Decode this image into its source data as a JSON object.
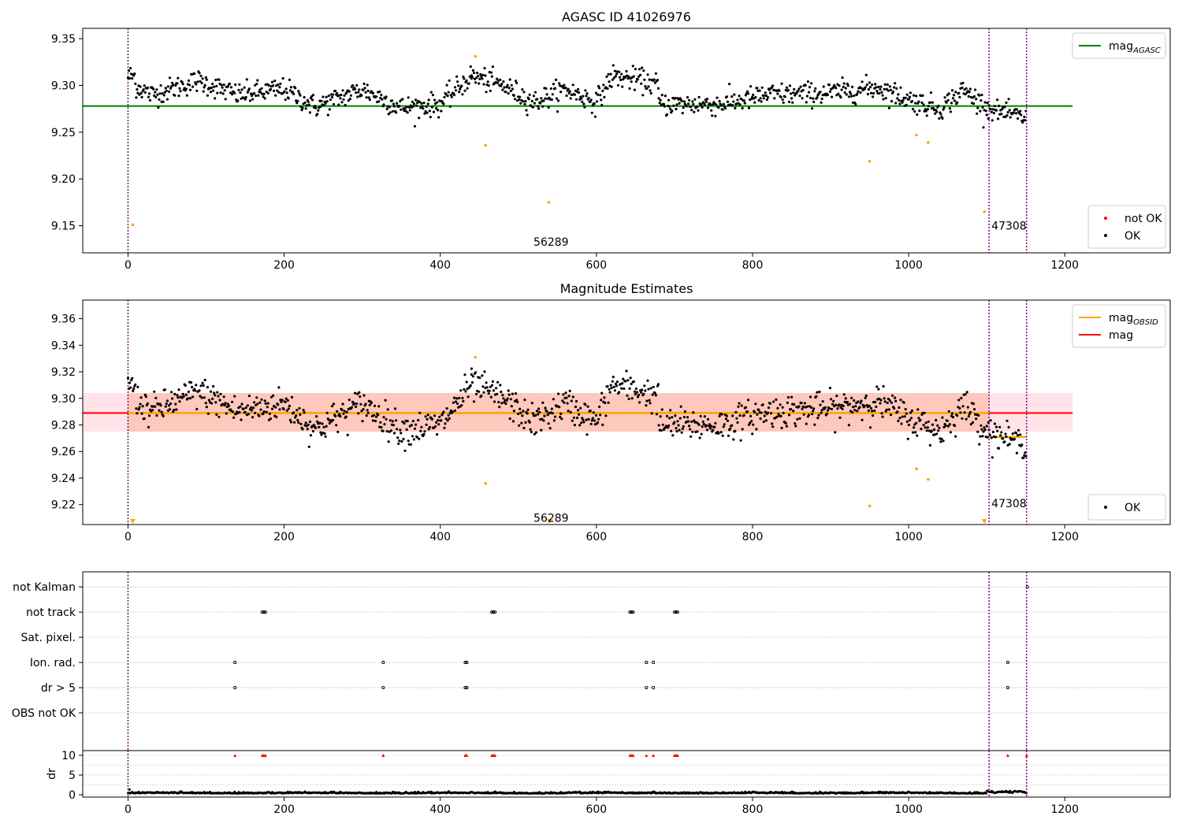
{
  "chart_data": [
    {
      "type": "scatter",
      "title": "AGASC ID 41026976",
      "xlim": [
        -58,
        1335
      ],
      "ylim": [
        9.121,
        9.361
      ],
      "xticks": [
        "0",
        "200",
        "400",
        "600",
        "800",
        "1000",
        "1200"
      ],
      "yticks": [
        "9.15",
        "9.20",
        "9.25",
        "9.30",
        "9.35"
      ],
      "ytick_values": [
        9.15,
        9.2,
        9.25,
        9.3,
        9.35
      ],
      "hlines": [
        {
          "name": "mag",
          "sub": "AGASC",
          "y": 9.278,
          "x": [
            -58,
            1210
          ],
          "color": "#008000"
        }
      ],
      "vlines": [
        0,
        1103,
        1151
      ],
      "obsid_labels": [
        {
          "text": "56289",
          "x": 550,
          "y": 9.133
        },
        {
          "text": "47308",
          "x": 1103,
          "y": 9.15
        }
      ],
      "legends": [
        {
          "position": "upper-right",
          "entries": [
            {
              "type": "line",
              "label": "mag",
              "sub": "AGASC",
              "color": "#008000"
            }
          ]
        },
        {
          "position": "lower-right",
          "entries": [
            {
              "type": "dot",
              "label": "not OK",
              "color": "#ff0000"
            },
            {
              "type": "dot",
              "label": "OK",
              "color": "#000000"
            }
          ]
        }
      ],
      "series": [
        {
          "color": "#000000",
          "segments": [
            {
              "x": [
                0,
                440
              ],
              "base": 9.295,
              "noise": 0.011,
              "wave": [
                [
                  9.31,
                  9.3
                ],
                [
                  30,
                  9.29
                ],
                [
                  90,
                  9.305
                ],
                [
                  140,
                  9.29
                ],
                [
                  200,
                  9.296
                ],
                [
                  240,
                  9.277
                ],
                [
                  300,
                  9.296
                ],
                [
                  350,
                  9.276
                ],
                [
                  400,
                  9.28
                ],
                [
                  440,
                  9.31
                ]
              ]
            },
            {
              "x": [
                440,
                680
              ],
              "base": 9.29,
              "noise": 0.011,
              "wave": [
                [
                  440,
                  9.31
                ],
                [
                  480,
                  9.3
                ],
                [
                  520,
                  9.282
                ],
                [
                  560,
                  9.296
                ],
                [
                  600,
                  9.282
                ],
                [
                  620,
                  9.31
                ],
                [
                  660,
                  9.305
                ],
                [
                  680,
                  9.3
                ]
              ]
            },
            {
              "x": [
                680,
                1103
              ],
              "base": 9.285,
              "noise": 0.011,
              "wave": [
                [
                  680,
                  9.28
                ],
                [
                  760,
                  9.28
                ],
                [
                  820,
                  9.29
                ],
                [
                  900,
                  9.292
                ],
                [
                  960,
                  9.298
                ],
                [
                  1000,
                  9.285
                ],
                [
                  1040,
                  9.275
                ],
                [
                  1070,
                  9.295
                ],
                [
                  1103,
                  9.275
                ]
              ]
            },
            {
              "x": [
                1103,
                1151
              ],
              "base": 9.27,
              "noise": 0.009,
              "wave": [
                [
                  1103,
                  9.275
                ],
                [
                  1151,
                  9.265
                ]
              ]
            }
          ]
        },
        {
          "color": "#ffa500",
          "points": [
            [
              6,
              9.151
            ],
            [
              445,
              9.331
            ],
            [
              458,
              9.236
            ],
            [
              539,
              9.175
            ],
            [
              950,
              9.219
            ],
            [
              1010,
              9.247
            ],
            [
              1025,
              9.239
            ],
            [
              1097,
              9.165
            ]
          ]
        }
      ]
    },
    {
      "type": "scatter",
      "title": "Magnitude Estimates",
      "xlim": [
        -58,
        1335
      ],
      "ylim": [
        9.205,
        9.374
      ],
      "xticks": [
        "0",
        "200",
        "400",
        "600",
        "800",
        "1000",
        "1200"
      ],
      "yticks": [
        "9.22",
        "9.24",
        "9.26",
        "9.28",
        "9.30",
        "9.32",
        "9.34",
        "9.36"
      ],
      "ytick_values": [
        9.22,
        9.24,
        9.26,
        9.28,
        9.3,
        9.32,
        9.34,
        9.36
      ],
      "bands": [
        {
          "x": [
            -58,
            1210
          ],
          "y": [
            9.275,
            9.304
          ],
          "color": "#ffc0cb",
          "opacity": 0.45
        },
        {
          "x": [
            0,
            1103
          ],
          "y": [
            9.275,
            9.304
          ],
          "color": "#ffa07a",
          "opacity": 0.4
        }
      ],
      "hlines": [
        {
          "name": "mag",
          "y": 9.289,
          "x": [
            -58,
            1210
          ],
          "color": "#ff0000"
        },
        {
          "name": "mag",
          "sub": "OBSID",
          "y": 9.289,
          "x": [
            0,
            1103
          ],
          "color": "#ffa500"
        },
        {
          "name": "mag",
          "sub": "OBSID",
          "y": 9.271,
          "x": [
            1103,
            1151
          ],
          "color": "#ffa500"
        }
      ],
      "vlines": [
        0,
        1103,
        1151
      ],
      "obsid_labels": [
        {
          "text": "56289",
          "x": 550,
          "y": 9.21
        },
        {
          "text": "47308",
          "x": 1103,
          "y": 9.221
        }
      ],
      "markers": [
        [
          6,
          9.207
        ],
        [
          540,
          9.207
        ],
        [
          1097,
          9.207
        ]
      ],
      "legends": [
        {
          "position": "upper-right",
          "entries": [
            {
              "type": "line",
              "label": "mag",
              "sub": "OBSID",
              "color": "#ffa500"
            },
            {
              "type": "line",
              "label": "mag",
              "color": "#ff0000"
            }
          ]
        },
        {
          "position": "lower-right",
          "entries": [
            {
              "type": "dot",
              "label": "OK",
              "color": "#000000"
            }
          ]
        }
      ],
      "series": [
        {
          "color": "#000000",
          "segments": [
            {
              "x": [
                0,
                440
              ],
              "base": 9.295,
              "noise": 0.011,
              "wave": [
                [
                  9.31,
                  9.3
                ],
                [
                  30,
                  9.29
                ],
                [
                  90,
                  9.305
                ],
                [
                  140,
                  9.29
                ],
                [
                  200,
                  9.296
                ],
                [
                  240,
                  9.277
                ],
                [
                  300,
                  9.296
                ],
                [
                  350,
                  9.276
                ],
                [
                  400,
                  9.28
                ],
                [
                  440,
                  9.31
                ]
              ]
            },
            {
              "x": [
                440,
                680
              ],
              "base": 9.29,
              "noise": 0.011,
              "wave": [
                [
                  440,
                  9.31
                ],
                [
                  480,
                  9.3
                ],
                [
                  520,
                  9.282
                ],
                [
                  560,
                  9.296
                ],
                [
                  600,
                  9.282
                ],
                [
                  620,
                  9.31
                ],
                [
                  660,
                  9.305
                ],
                [
                  680,
                  9.3
                ]
              ]
            },
            {
              "x": [
                680,
                1103
              ],
              "base": 9.285,
              "noise": 0.011,
              "wave": [
                [
                  680,
                  9.28
                ],
                [
                  760,
                  9.28
                ],
                [
                  820,
                  9.29
                ],
                [
                  900,
                  9.292
                ],
                [
                  960,
                  9.298
                ],
                [
                  1000,
                  9.285
                ],
                [
                  1040,
                  9.275
                ],
                [
                  1070,
                  9.295
                ],
                [
                  1103,
                  9.275
                ]
              ]
            },
            {
              "x": [
                1103,
                1151
              ],
              "base": 9.27,
              "noise": 0.009,
              "wave": [
                [
                  1103,
                  9.275
                ],
                [
                  1151,
                  9.265
                ]
              ]
            }
          ]
        },
        {
          "color": "#ffa500",
          "points": [
            [
              445,
              9.331
            ],
            [
              458,
              9.236
            ],
            [
              1010,
              9.247
            ],
            [
              1025,
              9.239
            ],
            [
              950,
              9.219
            ]
          ]
        }
      ]
    },
    {
      "type": "scatter",
      "xlim": [
        -58,
        1335
      ],
      "ylim": [
        -0.5,
        6.6
      ],
      "categories": [
        "not Kalman",
        "not track",
        "Sat. pixel.",
        "Ion. rad.",
        "dr > 5",
        "OBS not OK"
      ],
      "category_y": [
        6,
        5,
        4,
        3,
        2,
        1
      ],
      "vlines": [
        0,
        1103,
        1151
      ],
      "flags": [
        {
          "category": "not track",
          "x": [
            172,
            174,
            176,
            466,
            468,
            470,
            643,
            645,
            647,
            700,
            702,
            704
          ]
        },
        {
          "category": "Ion. rad.",
          "x": [
            137,
            327,
            432,
            434,
            664,
            673,
            1127
          ]
        },
        {
          "category": "dr > 5",
          "x": [
            137,
            327,
            432,
            434,
            664,
            673,
            1127
          ]
        },
        {
          "category": "not Kalman",
          "x": [
            1152
          ]
        }
      ]
    },
    {
      "type": "scatter",
      "ylabel": "dr",
      "xlim": [
        -58,
        1335
      ],
      "ylim": [
        -0.6,
        11.2
      ],
      "xticks": [
        "0",
        "200",
        "400",
        "600",
        "800",
        "1000",
        "1200"
      ],
      "yticks": [
        "0",
        "5",
        "10"
      ],
      "ytick_values": [
        0,
        5,
        10
      ],
      "vlines": [
        0,
        1103,
        1151
      ],
      "dr_series": {
        "x": [
          0,
          1151
        ],
        "base": 0.35,
        "noise": 0.25
      },
      "red_markers": [
        137,
        172,
        174,
        176,
        327,
        432,
        434,
        466,
        468,
        470,
        643,
        645,
        647,
        664,
        673,
        700,
        702,
        704,
        1127,
        1151
      ],
      "red_y": 10
    }
  ]
}
